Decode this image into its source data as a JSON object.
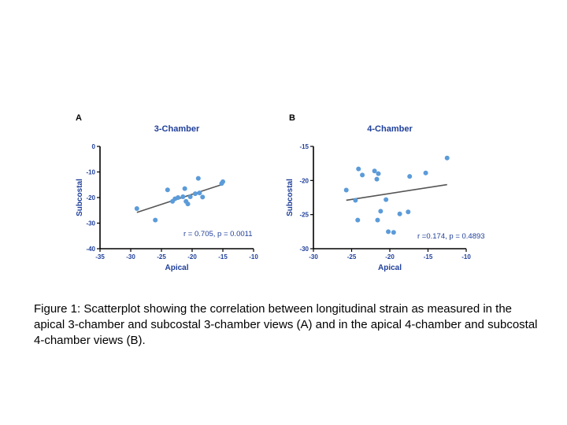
{
  "chart_data": [
    {
      "type": "scatter",
      "panel_letter": "A",
      "title": "3-Chamber",
      "xlabel": "Apical",
      "ylabel": "Subcostal",
      "xlim": [
        -35,
        -10
      ],
      "ylim": [
        -40,
        0
      ],
      "xticks": [
        -35,
        -30,
        -25,
        -20,
        -15,
        -10
      ],
      "yticks": [
        0,
        -10,
        -20,
        -30,
        -40
      ],
      "grid": false,
      "annotation": "r = 0.705, p = 0.0011",
      "point_color": "#5b9bd9",
      "line_color": "#555555",
      "fit_line": {
        "x": [
          -29,
          -15
        ],
        "y": [
          -25.8,
          -14.8
        ]
      },
      "points": [
        {
          "x": -29.0,
          "y": -24.3
        },
        {
          "x": -26.0,
          "y": -28.8
        },
        {
          "x": -24.0,
          "y": -17.0
        },
        {
          "x": -23.2,
          "y": -21.5
        },
        {
          "x": -22.8,
          "y": -20.5
        },
        {
          "x": -22.3,
          "y": -20.0
        },
        {
          "x": -21.5,
          "y": -19.7
        },
        {
          "x": -21.2,
          "y": -16.5
        },
        {
          "x": -21.0,
          "y": -21.5
        },
        {
          "x": -20.7,
          "y": -22.5
        },
        {
          "x": -20.3,
          "y": -19.7
        },
        {
          "x": -19.5,
          "y": -18.5
        },
        {
          "x": -19.0,
          "y": -12.5
        },
        {
          "x": -18.8,
          "y": -18.2
        },
        {
          "x": -18.3,
          "y": -19.8
        },
        {
          "x": -15.2,
          "y": -14.5
        },
        {
          "x": -15.0,
          "y": -13.8
        }
      ]
    },
    {
      "type": "scatter",
      "panel_letter": "B",
      "title": "4-Chamber",
      "xlabel": "Apical",
      "ylabel": "Subcostal",
      "xlim": [
        -30,
        -10
      ],
      "ylim": [
        -30,
        -15
      ],
      "xticks": [
        -30,
        -25,
        -20,
        -15,
        -10
      ],
      "yticks": [
        -15,
        -20,
        -25,
        -30
      ],
      "grid": false,
      "annotation": "r =0.174, p = 0.4893",
      "point_color": "#5b9bd9",
      "line_color": "#555555",
      "fit_line": {
        "x": [
          -25.7,
          -12.5
        ],
        "y": [
          -22.9,
          -20.6
        ]
      },
      "points": [
        {
          "x": -25.7,
          "y": -21.4
        },
        {
          "x": -24.5,
          "y": -22.9
        },
        {
          "x": -24.2,
          "y": -25.8
        },
        {
          "x": -24.1,
          "y": -18.3
        },
        {
          "x": -23.6,
          "y": -19.2
        },
        {
          "x": -22.0,
          "y": -18.6
        },
        {
          "x": -21.7,
          "y": -19.8
        },
        {
          "x": -21.6,
          "y": -25.8
        },
        {
          "x": -21.5,
          "y": -19.0
        },
        {
          "x": -21.2,
          "y": -24.5
        },
        {
          "x": -20.5,
          "y": -22.8
        },
        {
          "x": -20.2,
          "y": -27.5
        },
        {
          "x": -19.5,
          "y": -27.6
        },
        {
          "x": -18.7,
          "y": -24.9
        },
        {
          "x": -17.6,
          "y": -24.6
        },
        {
          "x": -17.4,
          "y": -19.4
        },
        {
          "x": -15.3,
          "y": -18.9
        },
        {
          "x": -12.5,
          "y": -16.7
        }
      ]
    }
  ],
  "caption": "Figure 1: Scatterplot showing the correlation between longitudinal strain as measured in the apical 3-chamber and subcostal 3-chamber views (A) and in the apical 4-chamber and subcostal 4-chamber views (B)."
}
